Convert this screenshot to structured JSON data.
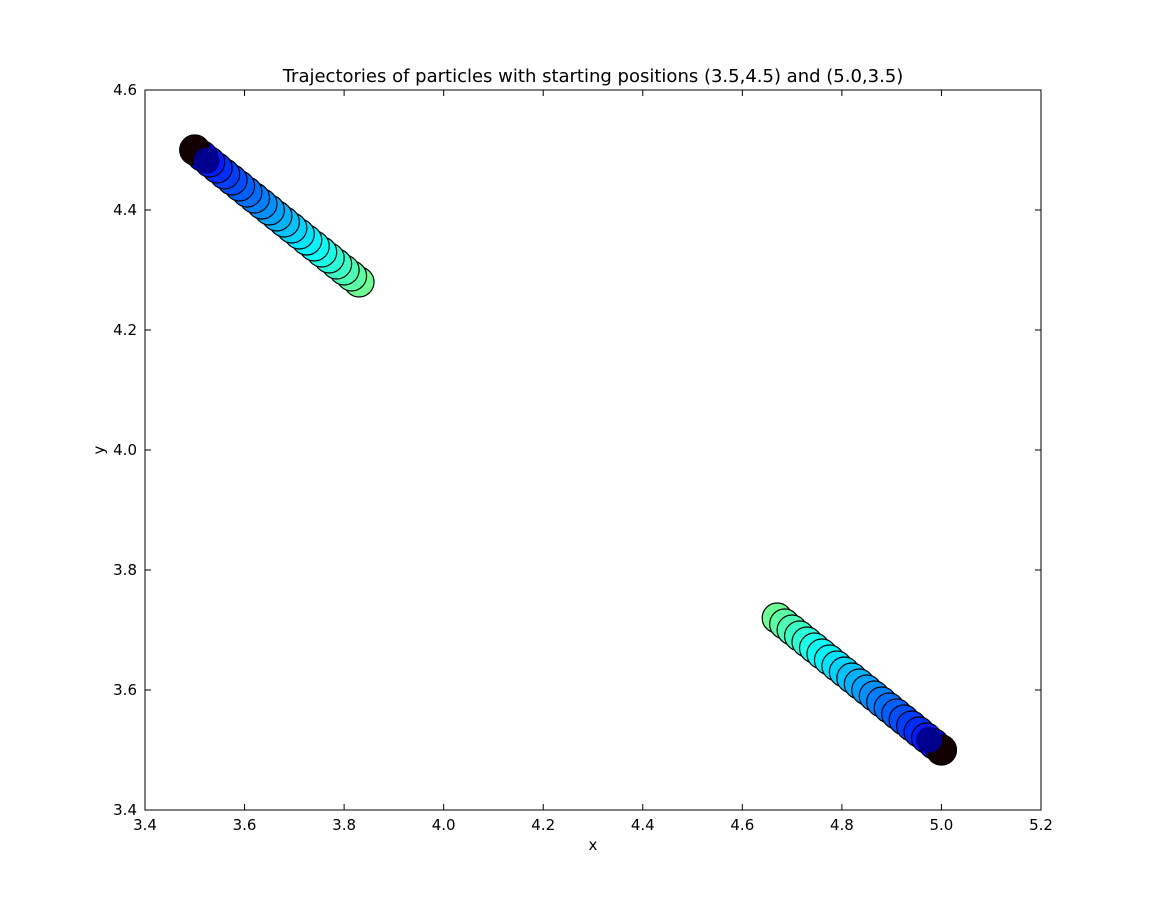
{
  "chart_data": {
    "type": "scatter",
    "title": "Trajectories of particles with starting positions (3.5,4.5) and (5.0,3.5)",
    "xlabel": "x",
    "ylabel": "y",
    "xlim": [
      3.4,
      5.2
    ],
    "ylim": [
      3.4,
      4.6
    ],
    "xticks": [
      3.4,
      3.6,
      3.8,
      4.0,
      4.2,
      4.4,
      4.6,
      4.8,
      5.0,
      5.2
    ],
    "yticks": [
      3.4,
      3.6,
      3.8,
      4.0,
      4.2,
      4.4,
      4.6
    ],
    "xtick_labels": [
      "3.4",
      "3.6",
      "3.8",
      "4.0",
      "4.2",
      "4.4",
      "4.6",
      "4.8",
      "5.0",
      "5.2"
    ],
    "ytick_labels": [
      "3.4",
      "3.6",
      "3.8",
      "4.0",
      "4.2",
      "4.4",
      "4.6"
    ],
    "grid": false,
    "legend": "none",
    "colormap": "jet",
    "marker_edge_color": "#000000",
    "series": [
      {
        "start": [
          3.5,
          4.5
        ],
        "x": [
          3.5,
          3.515,
          3.53,
          3.545,
          3.56,
          3.575,
          3.59,
          3.605,
          3.62,
          3.635,
          3.65,
          3.665,
          3.68,
          3.695,
          3.71,
          3.725,
          3.74,
          3.755,
          3.77,
          3.785,
          3.8,
          3.815,
          3.83
        ],
        "y": [
          4.5,
          4.49,
          4.48,
          4.47,
          4.46,
          4.45,
          4.44,
          4.43,
          4.42,
          4.41,
          4.4,
          4.39,
          4.38,
          4.37,
          4.36,
          4.35,
          4.34,
          4.33,
          4.32,
          4.31,
          4.3,
          4.29,
          4.28
        ]
      },
      {
        "start": [
          5.0,
          3.5
        ],
        "x": [
          5.0,
          4.985,
          4.97,
          4.955,
          4.94,
          4.925,
          4.91,
          4.895,
          4.88,
          4.865,
          4.85,
          4.835,
          4.82,
          4.805,
          4.79,
          4.775,
          4.76,
          4.745,
          4.73,
          4.715,
          4.7,
          4.685,
          4.67
        ],
        "y": [
          3.5,
          3.51,
          3.52,
          3.53,
          3.54,
          3.55,
          3.56,
          3.57,
          3.58,
          3.59,
          3.6,
          3.61,
          3.62,
          3.63,
          3.64,
          3.65,
          3.66,
          3.67,
          3.68,
          3.69,
          3.7,
          3.71,
          3.72
        ]
      }
    ],
    "highlight_points": [
      {
        "x": 3.524,
        "y": 4.482,
        "color": "#00008f"
      },
      {
        "x": 4.975,
        "y": 3.517,
        "color": "#00008f"
      }
    ]
  }
}
